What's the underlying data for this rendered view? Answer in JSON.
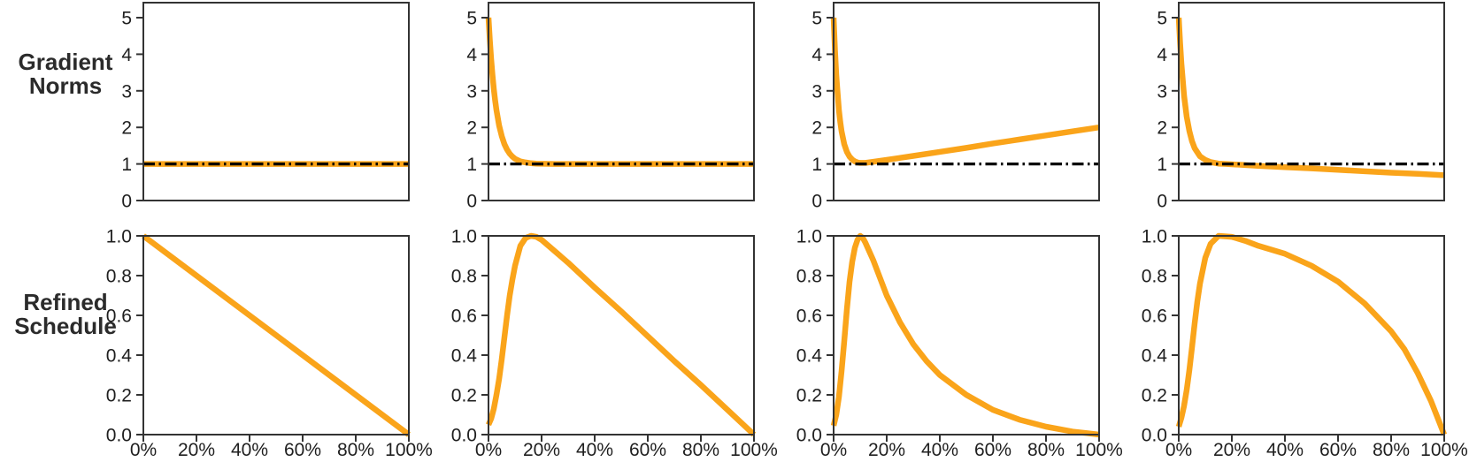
{
  "row_labels": [
    {
      "lines": [
        "Gradient",
        "Norms"
      ]
    },
    {
      "lines": [
        "Refined",
        "Schedule"
      ]
    }
  ],
  "style": {
    "accent_color": "#FAA41A",
    "axis_color": "#333333",
    "text_color": "#1f1f1f",
    "reference_line_color": "#000000",
    "background": "#ffffff"
  },
  "chart_data": [
    {
      "id": "gradient-norms-constant",
      "type": "line",
      "row_group": "Gradient Norms",
      "xlim": [
        0,
        1
      ],
      "ylim": [
        0,
        5.41
      ],
      "yticks": {
        "values": [
          0,
          1,
          2,
          3,
          4,
          5
        ],
        "labels": [
          "0",
          "1",
          "2",
          "3",
          "4",
          "5"
        ]
      },
      "xticks": {
        "values": [],
        "labels": []
      },
      "reference_line": {
        "y": 1.0,
        "style": "dash-dot"
      },
      "series": [
        {
          "name": "gradient-norm-curve",
          "x": [
            0,
            1
          ],
          "y": [
            1.0,
            1.0
          ]
        }
      ]
    },
    {
      "id": "gradient-norms-spike-then-flat",
      "type": "line",
      "row_group": "Gradient Norms",
      "xlim": [
        0,
        1
      ],
      "ylim": [
        0,
        5.41
      ],
      "yticks": {
        "values": [
          0,
          1,
          2,
          3,
          4,
          5
        ],
        "labels": [
          "0",
          "1",
          "2",
          "3",
          "4",
          "5"
        ]
      },
      "xticks": {
        "values": [],
        "labels": []
      },
      "reference_line": {
        "y": 1.0,
        "style": "dash-dot"
      },
      "series": [
        {
          "name": "gradient-norm-curve",
          "x": [
            0,
            0.005,
            0.01,
            0.015,
            0.02,
            0.025,
            0.03,
            0.04,
            0.05,
            0.06,
            0.07,
            0.08,
            0.09,
            0.1,
            0.12,
            0.14,
            0.16,
            0.18,
            0.2,
            0.25,
            0.3,
            0.4,
            0.6,
            0.8,
            1.0
          ],
          "y": [
            5.0,
            4.39,
            3.87,
            3.43,
            3.05,
            2.74,
            2.47,
            2.05,
            1.76,
            1.54,
            1.39,
            1.28,
            1.2,
            1.14,
            1.07,
            1.04,
            1.02,
            1.01,
            1.005,
            1.001,
            1.0,
            1.0,
            1.0,
            1.0,
            1.0
          ]
        }
      ]
    },
    {
      "id": "gradient-norms-spike-then-rising",
      "type": "line",
      "row_group": "Gradient Norms",
      "xlim": [
        0,
        1
      ],
      "ylim": [
        0,
        5.41
      ],
      "yticks": {
        "values": [
          0,
          1,
          2,
          3,
          4,
          5
        ],
        "labels": [
          "0",
          "1",
          "2",
          "3",
          "4",
          "5"
        ]
      },
      "xticks": {
        "values": [],
        "labels": []
      },
      "reference_line": {
        "y": 1.0,
        "style": "dash-dot"
      },
      "series": [
        {
          "name": "gradient-norm-curve",
          "x": [
            0,
            0.005,
            0.01,
            0.015,
            0.02,
            0.025,
            0.03,
            0.04,
            0.05,
            0.06,
            0.07,
            0.08,
            0.09,
            0.1,
            0.12,
            0.15,
            0.2,
            0.3,
            0.4,
            0.5,
            0.6,
            0.7,
            0.8,
            0.9,
            1.0
          ],
          "y": [
            5.0,
            4.12,
            3.43,
            2.94,
            2.47,
            2.15,
            1.89,
            1.54,
            1.33,
            1.2,
            1.12,
            1.07,
            1.04,
            1.03,
            1.03,
            1.06,
            1.11,
            1.22,
            1.33,
            1.44,
            1.56,
            1.67,
            1.78,
            1.89,
            2.0
          ]
        }
      ]
    },
    {
      "id": "gradient-norms-spike-then-declining",
      "type": "line",
      "row_group": "Gradient Norms",
      "xlim": [
        0,
        1
      ],
      "ylim": [
        0,
        5.41
      ],
      "yticks": {
        "values": [
          0,
          1,
          2,
          3,
          4,
          5
        ],
        "labels": [
          "0",
          "1",
          "2",
          "3",
          "4",
          "5"
        ]
      },
      "xticks": {
        "values": [],
        "labels": []
      },
      "reference_line": {
        "y": 1.0,
        "style": "dash-dot"
      },
      "series": [
        {
          "name": "gradient-norm-curve",
          "x": [
            0,
            0.005,
            0.01,
            0.02,
            0.03,
            0.04,
            0.05,
            0.06,
            0.08,
            0.1,
            0.12,
            0.15,
            0.18,
            0.2,
            0.3,
            0.4,
            0.5,
            0.6,
            0.7,
            0.8,
            0.9,
            1.0
          ],
          "y": [
            5.0,
            4.32,
            3.74,
            2.87,
            2.29,
            1.9,
            1.62,
            1.43,
            1.21,
            1.11,
            1.05,
            1.01,
            1.0,
            0.99,
            0.95,
            0.91,
            0.88,
            0.84,
            0.8,
            0.76,
            0.73,
            0.69
          ]
        }
      ]
    },
    {
      "id": "refined-schedule-linear-decay",
      "type": "line",
      "row_group": "Refined Schedule",
      "xlim": [
        0,
        1
      ],
      "ylim": [
        0,
        1
      ],
      "yticks": {
        "values": [
          0,
          0.2,
          0.4,
          0.6,
          0.8,
          1.0
        ],
        "labels": [
          "0.0",
          "0.2",
          "0.4",
          "0.6",
          "0.8",
          "1.0"
        ]
      },
      "xticks": {
        "values": [
          0,
          0.2,
          0.4,
          0.6,
          0.8,
          1.0
        ],
        "labels": [
          "0%",
          "20%",
          "40%",
          "60%",
          "80%",
          "100%"
        ]
      },
      "reference_line": null,
      "series": [
        {
          "name": "schedule-curve",
          "x": [
            0,
            1
          ],
          "y": [
            1.0,
            0.0
          ]
        }
      ]
    },
    {
      "id": "refined-schedule-warmup-linear-decay",
      "type": "line",
      "row_group": "Refined Schedule",
      "xlim": [
        0,
        1
      ],
      "ylim": [
        0,
        1
      ],
      "yticks": {
        "values": [
          0,
          0.2,
          0.4,
          0.6,
          0.8,
          1.0
        ],
        "labels": [
          "0.0",
          "0.2",
          "0.4",
          "0.6",
          "0.8",
          "1.0"
        ]
      },
      "xticks": {
        "values": [
          0,
          0.2,
          0.4,
          0.6,
          0.8,
          1.0
        ],
        "labels": [
          "0%",
          "20%",
          "40%",
          "60%",
          "80%",
          "100%"
        ]
      },
      "reference_line": null,
      "series": [
        {
          "name": "schedule-curve",
          "x": [
            0,
            0.01,
            0.02,
            0.03,
            0.04,
            0.05,
            0.06,
            0.07,
            0.08,
            0.09,
            0.1,
            0.12,
            0.14,
            0.16,
            0.18,
            0.2,
            0.3,
            0.4,
            0.5,
            0.6,
            0.7,
            0.8,
            0.9,
            1.0
          ],
          "y": [
            0.05,
            0.08,
            0.13,
            0.2,
            0.28,
            0.38,
            0.49,
            0.6,
            0.7,
            0.78,
            0.85,
            0.95,
            0.99,
            1.0,
            0.995,
            0.98,
            0.865,
            0.74,
            0.62,
            0.495,
            0.37,
            0.25,
            0.125,
            0.0
          ]
        }
      ]
    },
    {
      "id": "refined-schedule-warmup-fast-decay",
      "type": "line",
      "row_group": "Refined Schedule",
      "xlim": [
        0,
        1
      ],
      "ylim": [
        0,
        1
      ],
      "yticks": {
        "values": [
          0,
          0.2,
          0.4,
          0.6,
          0.8,
          1.0
        ],
        "labels": [
          "0.0",
          "0.2",
          "0.4",
          "0.6",
          "0.8",
          "1.0"
        ]
      },
      "xticks": {
        "values": [
          0,
          0.2,
          0.4,
          0.6,
          0.8,
          1.0
        ],
        "labels": [
          "0%",
          "20%",
          "40%",
          "60%",
          "80%",
          "100%"
        ]
      },
      "reference_line": null,
      "series": [
        {
          "name": "schedule-curve",
          "x": [
            0,
            0.01,
            0.02,
            0.03,
            0.04,
            0.05,
            0.06,
            0.07,
            0.08,
            0.09,
            0.1,
            0.11,
            0.12,
            0.15,
            0.2,
            0.25,
            0.3,
            0.35,
            0.4,
            0.5,
            0.6,
            0.7,
            0.8,
            0.9,
            0.95,
            1.0
          ],
          "y": [
            0.045,
            0.1,
            0.19,
            0.32,
            0.47,
            0.63,
            0.77,
            0.87,
            0.94,
            0.98,
            1.0,
            0.99,
            0.965,
            0.875,
            0.7,
            0.565,
            0.455,
            0.37,
            0.3,
            0.2,
            0.125,
            0.075,
            0.04,
            0.015,
            0.008,
            0.0
          ]
        }
      ]
    },
    {
      "id": "refined-schedule-warmup-slow-decay",
      "type": "line",
      "row_group": "Refined Schedule",
      "xlim": [
        0,
        1
      ],
      "ylim": [
        0,
        1
      ],
      "yticks": {
        "values": [
          0,
          0.2,
          0.4,
          0.6,
          0.8,
          1.0
        ],
        "labels": [
          "0.0",
          "0.2",
          "0.4",
          "0.6",
          "0.8",
          "1.0"
        ]
      },
      "xticks": {
        "values": [
          0,
          0.2,
          0.4,
          0.6,
          0.8,
          1.0
        ],
        "labels": [
          "0%",
          "20%",
          "40%",
          "60%",
          "80%",
          "100%"
        ]
      },
      "reference_line": null,
      "series": [
        {
          "name": "schedule-curve",
          "x": [
            0,
            0.01,
            0.02,
            0.03,
            0.04,
            0.05,
            0.06,
            0.07,
            0.08,
            0.1,
            0.12,
            0.15,
            0.2,
            0.25,
            0.3,
            0.4,
            0.5,
            0.6,
            0.7,
            0.8,
            0.85,
            0.9,
            0.95,
            1.0
          ],
          "y": [
            0.04,
            0.085,
            0.145,
            0.225,
            0.325,
            0.44,
            0.56,
            0.67,
            0.76,
            0.89,
            0.96,
            1.0,
            0.995,
            0.975,
            0.95,
            0.91,
            0.85,
            0.77,
            0.66,
            0.52,
            0.43,
            0.31,
            0.17,
            0.0
          ]
        }
      ]
    }
  ]
}
